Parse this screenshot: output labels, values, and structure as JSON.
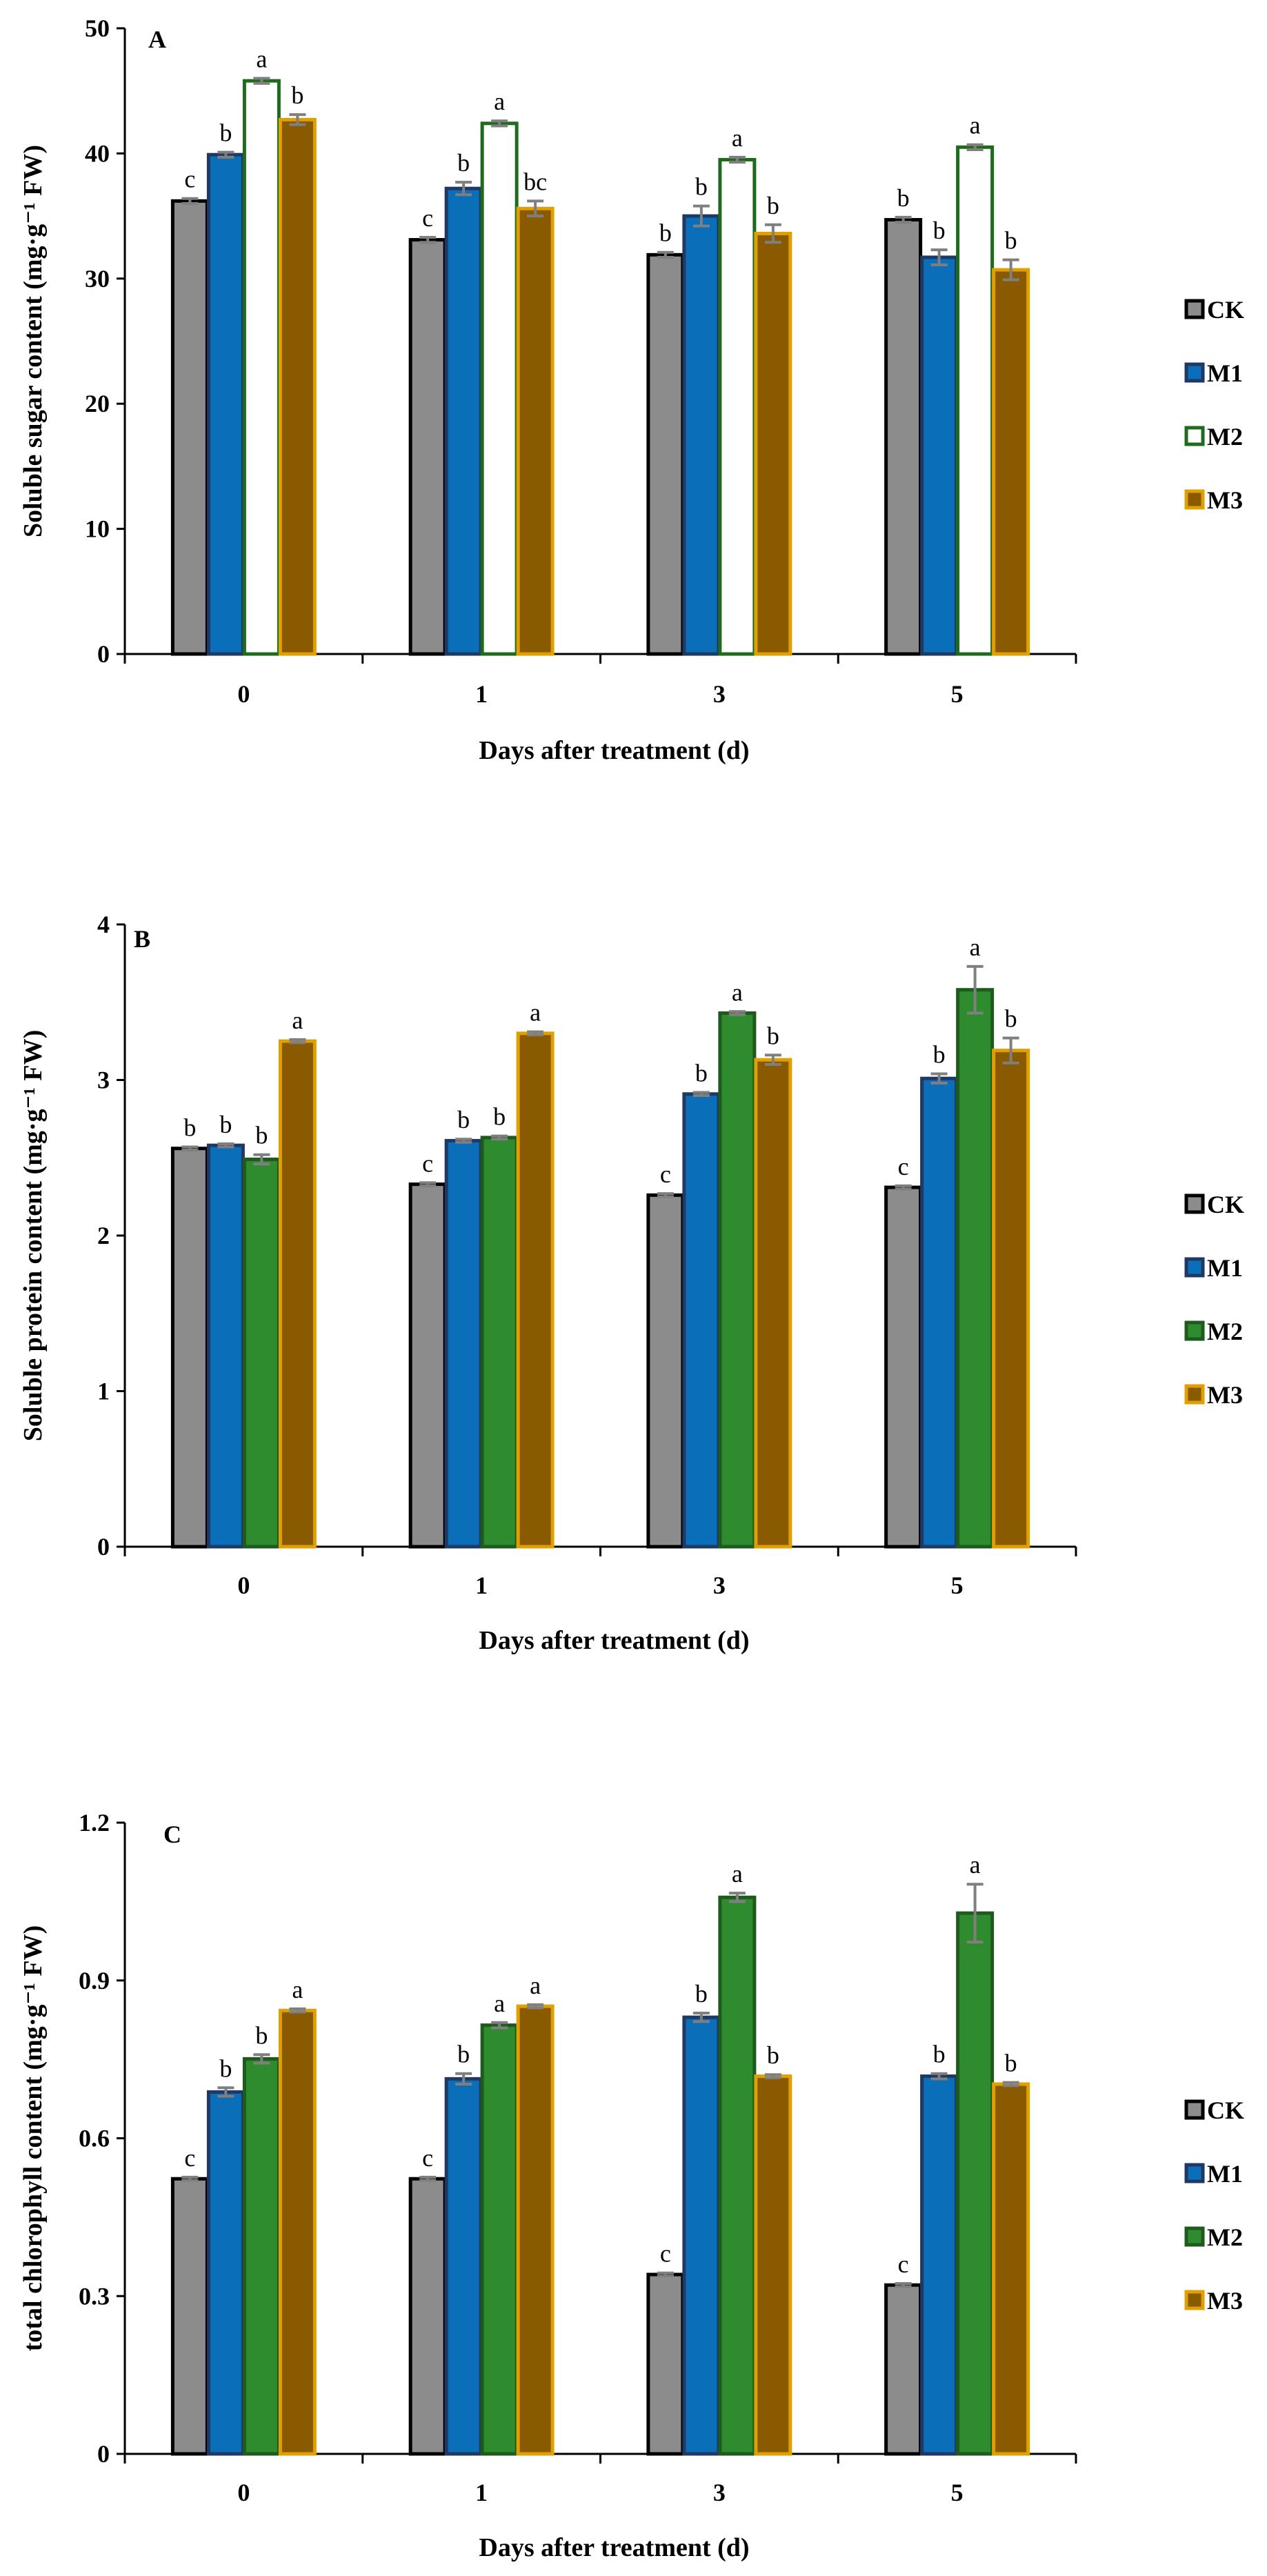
{
  "legend_labels": [
    "CK",
    "M1",
    "M2",
    "M3"
  ],
  "chart_data": [
    {
      "type": "bar",
      "panel": "A",
      "xlabel": "Days after treatment (d)",
      "ylabel": "Soluble sugar content (mg·g⁻¹ FW)",
      "categories": [
        "0",
        "1",
        "3",
        "5"
      ],
      "ylim": [
        0,
        50
      ],
      "yticks": [
        "0",
        "10",
        "20",
        "30",
        "40",
        "50"
      ],
      "series": [
        {
          "name": "CK",
          "fill": "#8c8c8c",
          "stroke": "#000000",
          "values": [
            36.2,
            33.1,
            31.9,
            34.7
          ],
          "errors": [
            0.2,
            0.2,
            0.2,
            0.2
          ],
          "letters": [
            "c",
            "c",
            "b",
            "b"
          ]
        },
        {
          "name": "M1",
          "fill": "#0a6fb8",
          "stroke": "#1f3864",
          "values": [
            39.9,
            37.2,
            35.0,
            31.7
          ],
          "errors": [
            0.2,
            0.5,
            0.8,
            0.6
          ],
          "letters": [
            "b",
            "b",
            "b",
            "b"
          ]
        },
        {
          "name": "M2",
          "fill": "#ffffff",
          "stroke": "#1e6b1e",
          "values": [
            45.8,
            42.4,
            39.5,
            40.5
          ],
          "errors": [
            0.2,
            0.2,
            0.2,
            0.2
          ],
          "letters": [
            "a",
            "a",
            "a",
            "a"
          ]
        },
        {
          "name": "M3",
          "fill": "#8a5a00",
          "stroke": "#e0a000",
          "values": [
            42.7,
            35.6,
            33.6,
            30.7
          ],
          "errors": [
            0.4,
            0.6,
            0.7,
            0.8
          ],
          "letters": [
            "b",
            "bc",
            "b",
            "b"
          ]
        }
      ]
    },
    {
      "type": "bar",
      "panel": "B",
      "xlabel": "Days after treatment (d)",
      "ylabel": "Soluble protein content (mg·g⁻¹ FW)",
      "categories": [
        "0",
        "1",
        "3",
        "5"
      ],
      "ylim": [
        0,
        4
      ],
      "yticks": [
        "0",
        "1",
        "2",
        "3",
        "4"
      ],
      "series": [
        {
          "name": "CK",
          "fill": "#8c8c8c",
          "stroke": "#000000",
          "values": [
            2.56,
            2.33,
            2.26,
            2.31
          ],
          "errors": [
            0.01,
            0.01,
            0.01,
            0.01
          ],
          "letters": [
            "b",
            "c",
            "c",
            "c"
          ]
        },
        {
          "name": "M1",
          "fill": "#0a6fb8",
          "stroke": "#1f3864",
          "values": [
            2.58,
            2.61,
            2.91,
            3.01
          ],
          "errors": [
            0.01,
            0.01,
            0.01,
            0.03
          ],
          "letters": [
            "b",
            "b",
            "b",
            "b"
          ]
        },
        {
          "name": "M2",
          "fill": "#2e8b2e",
          "stroke": "#1e5a1e",
          "values": [
            2.49,
            2.63,
            3.43,
            3.58
          ],
          "errors": [
            0.03,
            0.01,
            0.01,
            0.15
          ],
          "letters": [
            "b",
            "b",
            "a",
            "a"
          ]
        },
        {
          "name": "M3",
          "fill": "#8a5a00",
          "stroke": "#e0a000",
          "values": [
            3.25,
            3.3,
            3.13,
            3.19
          ],
          "errors": [
            0.01,
            0.01,
            0.03,
            0.08
          ],
          "letters": [
            "a",
            "a",
            "b",
            "b"
          ]
        }
      ]
    },
    {
      "type": "bar",
      "panel": "C",
      "xlabel": "Days after treatment (d)",
      "ylabel": "total chlorophyll content (mg·g⁻¹ FW)",
      "categories": [
        "0",
        "1",
        "3",
        "5"
      ],
      "ylim": [
        0,
        1.2
      ],
      "yticks": [
        "0",
        "0.3",
        "0.6",
        "0.9",
        "1.2"
      ],
      "series": [
        {
          "name": "CK",
          "fill": "#8c8c8c",
          "stroke": "#000000",
          "values": [
            0.523,
            0.523,
            0.341,
            0.321
          ],
          "errors": [
            0.003,
            0.003,
            0.003,
            0.003
          ],
          "letters": [
            "c",
            "c",
            "c",
            "c"
          ]
        },
        {
          "name": "M1",
          "fill": "#0a6fb8",
          "stroke": "#1f3864",
          "values": [
            0.688,
            0.713,
            0.83,
            0.718
          ],
          "errors": [
            0.008,
            0.01,
            0.008,
            0.005
          ],
          "letters": [
            "b",
            "b",
            "b",
            "b"
          ]
        },
        {
          "name": "M2",
          "fill": "#2e8b2e",
          "stroke": "#1e5a1e",
          "values": [
            0.751,
            0.815,
            1.058,
            1.028
          ],
          "errors": [
            0.008,
            0.005,
            0.008,
            0.055
          ],
          "letters": [
            "b",
            "a",
            "a",
            "a"
          ]
        },
        {
          "name": "M3",
          "fill": "#8a5a00",
          "stroke": "#e0a000",
          "values": [
            0.843,
            0.851,
            0.718,
            0.703
          ],
          "errors": [
            0.003,
            0.003,
            0.003,
            0.003
          ],
          "letters": [
            "a",
            "a",
            "b",
            "b"
          ]
        }
      ]
    }
  ]
}
